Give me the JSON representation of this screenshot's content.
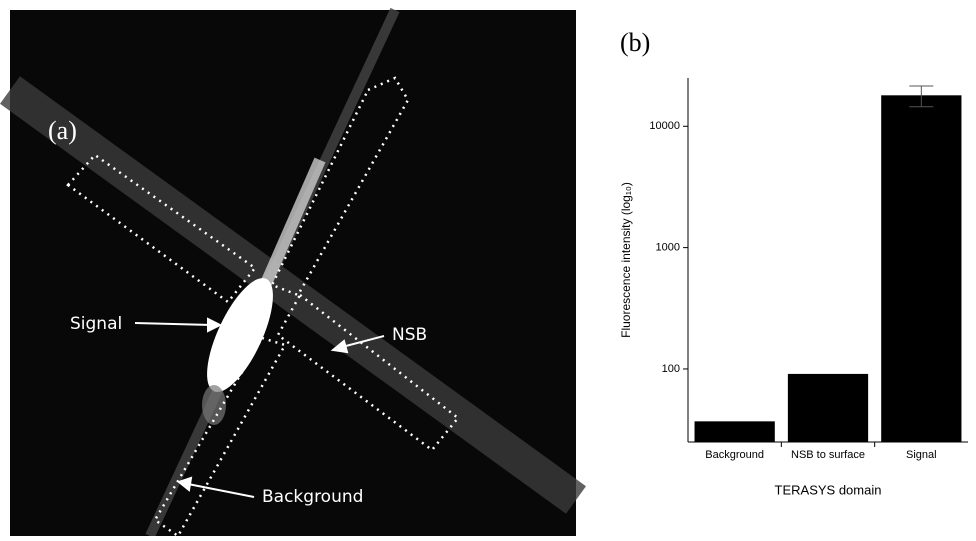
{
  "image_panel": {
    "label": "(a)",
    "annotations": [
      "Signal",
      "NSB",
      "Background"
    ]
  },
  "chart_data": {
    "type": "bar",
    "panel_label": "(b)",
    "y_label": "Fluorescence intensity (log₁₀)",
    "x_label": "TERASYS domain",
    "categories": [
      "Background",
      "NSB to surface",
      "Signal"
    ],
    "values": [
      37,
      91,
      18000
    ],
    "errors": [
      null,
      null,
      3500
    ],
    "color": "#000000",
    "log_scale": true,
    "ylim": [
      25,
      25000
    ],
    "yticks": [
      100,
      1000,
      10000
    ],
    "grid": false
  }
}
